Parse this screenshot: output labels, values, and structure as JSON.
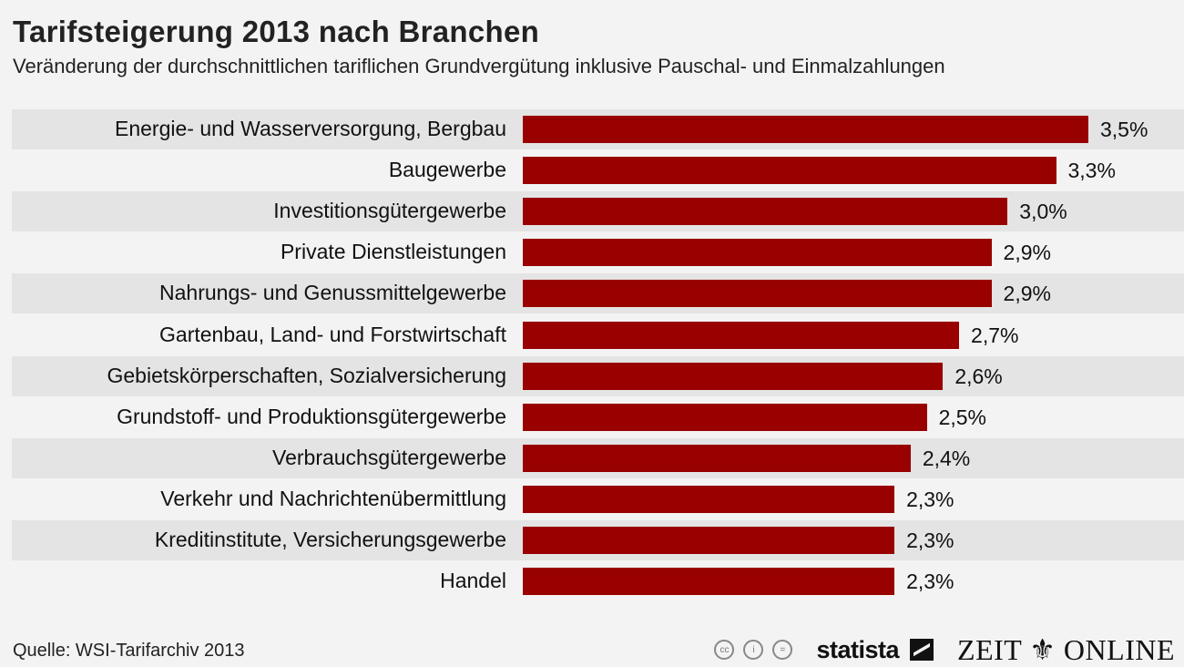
{
  "chart_data": {
    "type": "bar",
    "orientation": "horizontal",
    "title": "Tarifsteigerung 2013 nach Branchen",
    "subtitle": "Veränderung der durchschnittlichen tariflichen Grundvergütung inklusive Pauschal- und Einmalzahlungen",
    "categories": [
      "Energie- und Wasserversorgung, Bergbau",
      "Baugewerbe",
      "Investitionsgütergewerbe",
      "Private Dienstleistungen",
      "Nahrungs- und Genussmittelgewerbe",
      "Gartenbau, Land- und Forstwirtschaft",
      "Gebietskörperschaften, Sozialversicherung",
      "Grundstoff- und Produktionsgütergewerbe",
      "Verbrauchsgütergewerbe",
      "Verkehr und Nachrichtenübermittlung",
      "Kreditinstitute, Versicherungsgewerbe",
      "Handel"
    ],
    "values": [
      3.5,
      3.3,
      3.0,
      2.9,
      2.9,
      2.7,
      2.6,
      2.5,
      2.4,
      2.3,
      2.3,
      2.3
    ],
    "value_labels": [
      "3,5%",
      "3,3%",
      "3,0%",
      "2,9%",
      "2,9%",
      "2,7%",
      "2,6%",
      "2,5%",
      "2,4%",
      "2,3%",
      "2,3%",
      "2,3%"
    ],
    "unit": "%",
    "xlim": [
      0,
      3.5
    ],
    "grid": false,
    "color": "#990000"
  },
  "footer": {
    "source": "Quelle: WSI-Tarifarchiv 2013",
    "cc": [
      "cc",
      "i",
      "="
    ],
    "statista": "statista",
    "zeit": "ZEIT ⚜ ONLINE"
  }
}
